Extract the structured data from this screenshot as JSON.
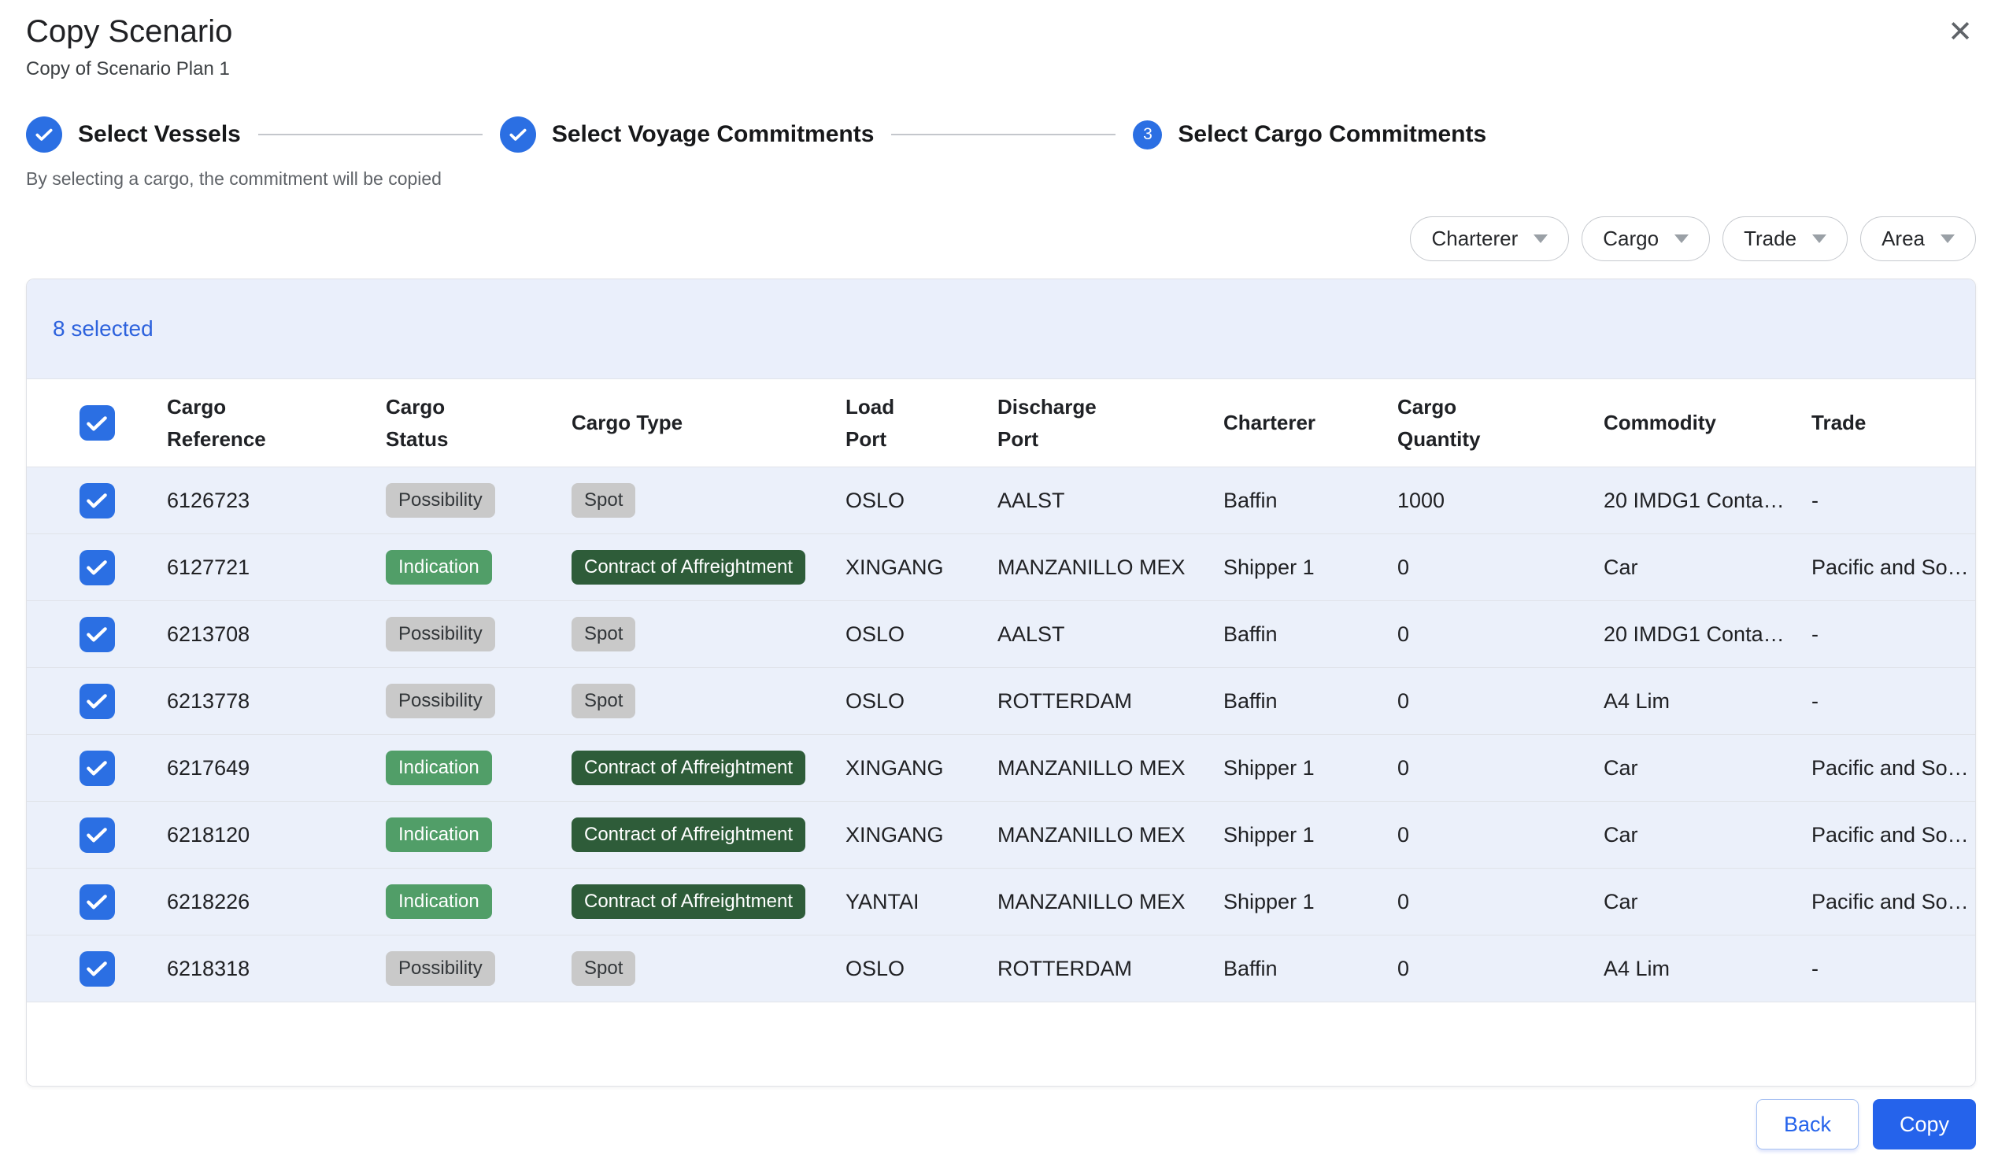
{
  "dialog": {
    "title": "Copy Scenario",
    "subtitle": "Copy of Scenario Plan 1",
    "close_icon": "✕"
  },
  "stepper": {
    "steps": [
      {
        "label": "Select Vessels",
        "state": "complete"
      },
      {
        "label": "Select Voyage Commitments",
        "state": "complete"
      },
      {
        "label": "Select Cargo Commitments",
        "state": "current",
        "number": "3"
      }
    ],
    "helper_text": "By selecting a cargo, the commitment will be copied"
  },
  "filters": [
    {
      "label": "Charterer"
    },
    {
      "label": "Cargo"
    },
    {
      "label": "Trade"
    },
    {
      "label": "Area"
    }
  ],
  "table": {
    "selected_count_label": "8 selected",
    "select_all_checked": true,
    "columns": [
      {
        "id": "cargo-reference",
        "lines": [
          "Cargo",
          "Reference"
        ]
      },
      {
        "id": "cargo-status",
        "lines": [
          "Cargo",
          "Status"
        ]
      },
      {
        "id": "cargo-type",
        "lines": [
          "Cargo Type"
        ]
      },
      {
        "id": "load-port",
        "lines": [
          "Load",
          "Port"
        ]
      },
      {
        "id": "discharge-port",
        "lines": [
          "Discharge",
          "Port"
        ]
      },
      {
        "id": "charterer",
        "lines": [
          "Charterer"
        ]
      },
      {
        "id": "cargo-quantity",
        "lines": [
          "Cargo",
          "Quantity"
        ]
      },
      {
        "id": "commodity",
        "lines": [
          "Commodity"
        ]
      },
      {
        "id": "trade",
        "lines": [
          "Trade"
        ]
      }
    ],
    "rows": [
      {
        "checked": true,
        "cargo_reference": "6126723",
        "cargo_status": {
          "label": "Possibility",
          "variant": "neutral"
        },
        "cargo_type": {
          "label": "Spot",
          "variant": "neutral"
        },
        "load_port": "OSLO",
        "discharge_port": "AALST",
        "charterer": "Baffin",
        "cargo_quantity": "1000",
        "commodity": "20 IMDG1 Conta…",
        "trade": "-"
      },
      {
        "checked": true,
        "cargo_reference": "6127721",
        "cargo_status": {
          "label": "Indication",
          "variant": "green"
        },
        "cargo_type": {
          "label": "Contract of Affreightment",
          "variant": "darkgreen"
        },
        "load_port": "XINGANG",
        "discharge_port": "MANZANILLO MEX",
        "charterer": "Shipper 1",
        "cargo_quantity": "0",
        "commodity": "Car",
        "trade": "Pacific and So…"
      },
      {
        "checked": true,
        "cargo_reference": "6213708",
        "cargo_status": {
          "label": "Possibility",
          "variant": "neutral"
        },
        "cargo_type": {
          "label": "Spot",
          "variant": "neutral"
        },
        "load_port": "OSLO",
        "discharge_port": "AALST",
        "charterer": "Baffin",
        "cargo_quantity": "0",
        "commodity": "20 IMDG1 Conta…",
        "trade": "-"
      },
      {
        "checked": true,
        "cargo_reference": "6213778",
        "cargo_status": {
          "label": "Possibility",
          "variant": "neutral"
        },
        "cargo_type": {
          "label": "Spot",
          "variant": "neutral"
        },
        "load_port": "OSLO",
        "discharge_port": "ROTTERDAM",
        "charterer": "Baffin",
        "cargo_quantity": "0",
        "commodity": "A4 Lim",
        "trade": "-"
      },
      {
        "checked": true,
        "cargo_reference": "6217649",
        "cargo_status": {
          "label": "Indication",
          "variant": "green"
        },
        "cargo_type": {
          "label": "Contract of Affreightment",
          "variant": "darkgreen"
        },
        "load_port": "XINGANG",
        "discharge_port": "MANZANILLO MEX",
        "charterer": "Shipper 1",
        "cargo_quantity": "0",
        "commodity": "Car",
        "trade": "Pacific and So…"
      },
      {
        "checked": true,
        "cargo_reference": "6218120",
        "cargo_status": {
          "label": "Indication",
          "variant": "green"
        },
        "cargo_type": {
          "label": "Contract of Affreightment",
          "variant": "darkgreen"
        },
        "load_port": "XINGANG",
        "discharge_port": "MANZANILLO MEX",
        "charterer": "Shipper 1",
        "cargo_quantity": "0",
        "commodity": "Car",
        "trade": "Pacific and So…"
      },
      {
        "checked": true,
        "cargo_reference": "6218226",
        "cargo_status": {
          "label": "Indication",
          "variant": "green"
        },
        "cargo_type": {
          "label": "Contract of Affreightment",
          "variant": "darkgreen"
        },
        "load_port": "YANTAI",
        "discharge_port": "MANZANILLO MEX",
        "charterer": "Shipper 1",
        "cargo_quantity": "0",
        "commodity": "Car",
        "trade": "Pacific and So…"
      },
      {
        "checked": true,
        "cargo_reference": "6218318",
        "cargo_status": {
          "label": "Possibility",
          "variant": "neutral"
        },
        "cargo_type": {
          "label": "Spot",
          "variant": "neutral"
        },
        "load_port": "OSLO",
        "discharge_port": "ROTTERDAM",
        "charterer": "Baffin",
        "cargo_quantity": "0",
        "commodity": "A4 Lim",
        "trade": "-"
      }
    ]
  },
  "footer": {
    "back_label": "Back",
    "copy_label": "Copy"
  },
  "colors": {
    "accent": "#2B6FE3",
    "btn-blue": "#2563EB",
    "link-blue": "#2D62DD",
    "banner-bg": "#EAEFFB",
    "row-bg": "#EBF0FA",
    "chip-neutral": "#C9C9C9",
    "chip-neutral-text": "#323639",
    "chip-green": "#519E68",
    "chip-darkgreen": "#2E5C39",
    "border": "#E0E3E9"
  }
}
